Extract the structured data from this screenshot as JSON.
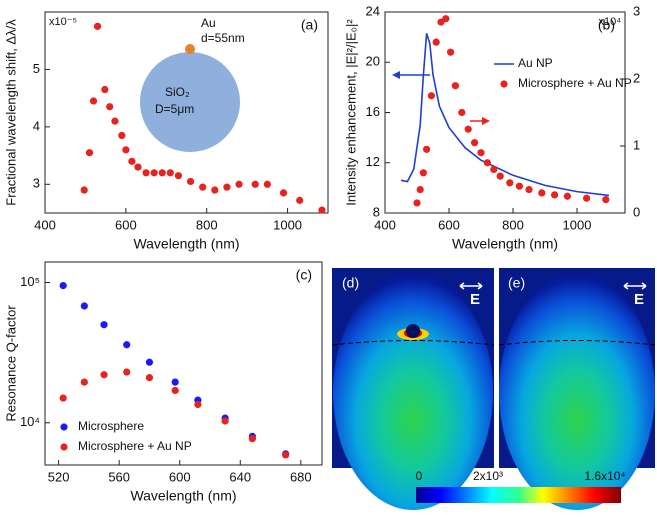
{
  "chart_data": [
    {
      "type": "scatter",
      "panel": "(a)",
      "x_label": "Wavelength (nm)",
      "y_label": "Fractional wavelength shift, Δλ/λ",
      "y_multiplier": "x10⁻⁵",
      "xlim": [
        400,
        1100
      ],
      "xticks": [
        400,
        600,
        800,
        1000
      ],
      "ylim": [
        2.5,
        6.0
      ],
      "yticks": [
        3,
        4,
        5
      ],
      "annotations": [
        "Au",
        "d=55nm",
        "SiO₂",
        "D=5μm"
      ],
      "series": [
        {
          "color": "#e8221c",
          "style": "markers",
          "x": [
            497,
            510,
            520,
            530,
            548,
            560,
            573,
            590,
            600,
            615,
            630,
            650,
            670,
            690,
            710,
            730,
            760,
            790,
            820,
            850,
            880,
            920,
            950,
            990,
            1030,
            1085
          ],
          "values": [
            2.9,
            3.55,
            4.45,
            5.75,
            4.65,
            4.35,
            4.1,
            3.85,
            3.6,
            3.4,
            3.3,
            3.2,
            3.2,
            3.2,
            3.2,
            3.15,
            3.05,
            2.95,
            2.9,
            2.95,
            3.0,
            3.0,
            3.0,
            2.85,
            2.72,
            2.55
          ]
        }
      ]
    },
    {
      "type": "line",
      "panel": "(b)",
      "x_label": "Wavelength (nm)",
      "y_label": "Intensity enhancement, |E|²/|E₀|²",
      "y2_multiplier": "x10⁴",
      "xlim": [
        400,
        1150
      ],
      "xticks": [
        400,
        600,
        800,
        1000
      ],
      "ylim": [
        8,
        24
      ],
      "yticks": [
        8,
        12,
        16,
        20,
        24
      ],
      "y2lim": [
        0,
        3
      ],
      "y2ticks": [
        0,
        1,
        2,
        3
      ],
      "legend": "upper right",
      "series": [
        {
          "name": "Au NP",
          "color": "#1f3fcf",
          "style": "line",
          "x": [
            450,
            470,
            490,
            510,
            520,
            530,
            540,
            550,
            570,
            600,
            650,
            700,
            800,
            900,
            1000,
            1100
          ],
          "values": [
            10.6,
            10.5,
            11.5,
            15,
            19,
            22.3,
            21.5,
            19,
            16.5,
            14.8,
            13.2,
            12.2,
            11,
            10.2,
            9.7,
            9.4
          ]
        },
        {
          "name": "Microsphere + Au NP",
          "color": "#e8221c",
          "style": "markers",
          "axis": "y2",
          "x": [
            500,
            510,
            520,
            530,
            545,
            560,
            575,
            590,
            605,
            620,
            640,
            660,
            680,
            700,
            720,
            740,
            760,
            790,
            820,
            850,
            890,
            930,
            970,
            1030,
            1090
          ],
          "values": [
            0.15,
            0.35,
            0.6,
            0.95,
            1.75,
            2.55,
            2.85,
            2.9,
            2.4,
            1.9,
            1.5,
            1.25,
            1.05,
            0.9,
            0.75,
            0.65,
            0.55,
            0.45,
            0.4,
            0.35,
            0.3,
            0.27,
            0.25,
            0.22,
            0.2
          ]
        }
      ]
    },
    {
      "type": "scatter",
      "panel": "(c)",
      "x_label": "Wavelength (nm)",
      "y_label": "Resonance Q-factor",
      "ylog": true,
      "xlim": [
        511,
        694
      ],
      "xticks": [
        520,
        560,
        600,
        640,
        680
      ],
      "ylim": [
        5000,
        140000
      ],
      "yticks": [
        {
          "value": 10000,
          "label": "10⁴"
        },
        {
          "value": 100000,
          "label": "10⁵"
        }
      ],
      "legend": "lower left",
      "series": [
        {
          "name": "Microsphere",
          "color": "#1a1aff",
          "style": "markers",
          "x": [
            523,
            537,
            550,
            565,
            580,
            597,
            612,
            630,
            648,
            670
          ],
          "values": [
            95000,
            68000,
            50000,
            36000,
            27000,
            19500,
            14500,
            10800,
            8000,
            6000
          ]
        },
        {
          "name": "Microsphere + Au NP",
          "color": "#e8221c",
          "style": "markers",
          "x": [
            523,
            537,
            550,
            565,
            580,
            597,
            612,
            630,
            648,
            670
          ],
          "values": [
            15000,
            19500,
            22000,
            23000,
            21000,
            17000,
            13500,
            10300,
            7700,
            5900
          ]
        }
      ]
    }
  ],
  "field_maps": {
    "panels": [
      "(d)",
      "(e)"
    ],
    "field_label": "E",
    "colorbar_ticks": [
      "0",
      "2x10³",
      "1.6x10⁴"
    ]
  }
}
